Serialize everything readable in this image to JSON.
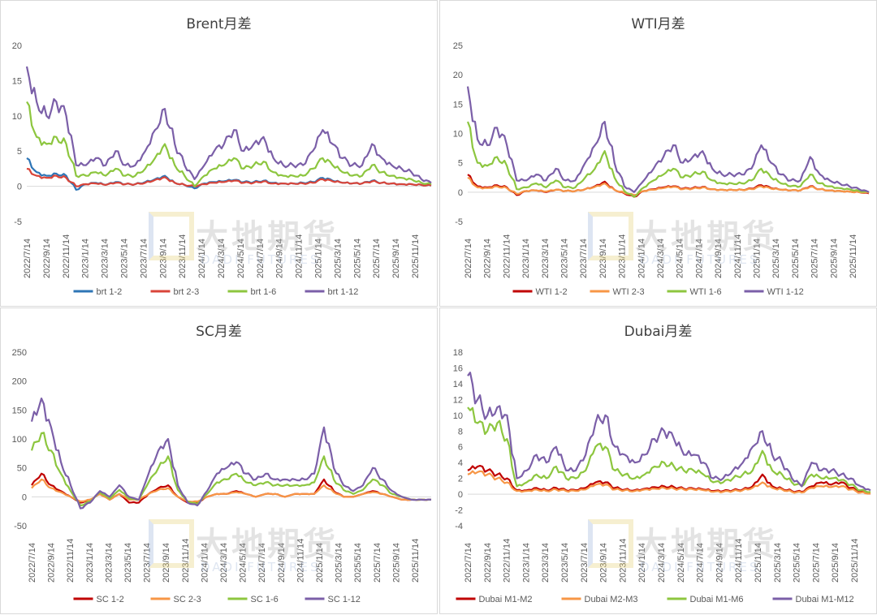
{
  "watermark": {
    "cn": "大地期货",
    "en": "DADI FUTURES"
  },
  "chart_data": [
    {
      "type": "line",
      "title": "Brent月差",
      "ylim": [
        -5,
        20
      ],
      "yticks": [
        -5,
        0,
        5,
        10,
        15,
        20
      ],
      "xticks": [
        "2022/7/14",
        "2022/9/14",
        "2022/11/14",
        "2023/1/14",
        "2023/3/14",
        "2023/5/14",
        "2023/7/14",
        "2023/9/14",
        "2023/11/14",
        "2024/1/14",
        "2024/3/14",
        "2024/5/14",
        "2024/7/14",
        "2024/9/14",
        "2024/11/14",
        "2025/1/14",
        "2025/3/14",
        "2025/5/14",
        "2025/7/14",
        "2025/9/14",
        "2025/11/14"
      ],
      "series": [
        {
          "name": "brt 1-2",
          "color": "#2e75b6",
          "values": [
            4,
            2,
            1.5,
            1.8,
            1.5,
            -0.5,
            0.3,
            0.5,
            0.2,
            0.6,
            0.3,
            0.3,
            0.6,
            1,
            1.5,
            0.5,
            0.2,
            -0.3,
            0.4,
            0.6,
            0.7,
            0.9,
            0.6,
            0.6,
            0.8,
            0.5,
            0.4,
            0.4,
            0.5,
            0.6,
            1.2,
            0.8,
            0.5,
            0.4,
            0.4,
            0.8,
            0.5,
            0.4,
            0.3,
            0.3,
            0.2,
            0.1
          ]
        },
        {
          "name": "brt 2-3",
          "color": "#d9453a",
          "values": [
            2.5,
            1.5,
            1.2,
            1.5,
            1.2,
            0,
            0.3,
            0.4,
            0.2,
            0.5,
            0.3,
            0.3,
            0.5,
            0.9,
            1.3,
            0.5,
            0.2,
            0,
            0.3,
            0.5,
            0.6,
            0.8,
            0.5,
            0.5,
            0.7,
            0.4,
            0.4,
            0.4,
            0.4,
            0.5,
            1,
            0.7,
            0.5,
            0.4,
            0.4,
            0.7,
            0.5,
            0.4,
            0.3,
            0.3,
            0.2,
            0.1
          ]
        },
        {
          "name": "brt 1-6",
          "color": "#8dc63f",
          "values": [
            12,
            7,
            6,
            7,
            6,
            1.5,
            1.5,
            2,
            1.5,
            2.5,
            1.5,
            1.5,
            2.5,
            4,
            6,
            3,
            1.5,
            0,
            1.5,
            2.5,
            3,
            4,
            2.5,
            3,
            3.5,
            2,
            1.5,
            1.5,
            1.5,
            2.5,
            4,
            3,
            2,
            1.5,
            1.5,
            3,
            2,
            1.5,
            1.2,
            1,
            0.5,
            0.3
          ]
        },
        {
          "name": "brt 1-12",
          "color": "#7b5fa8",
          "values": [
            17,
            12,
            10,
            12,
            10,
            3,
            3,
            4,
            3,
            5,
            3,
            3,
            5,
            8,
            11,
            6,
            3,
            1,
            3,
            5,
            6,
            8,
            5,
            6,
            7,
            4,
            3,
            3,
            3,
            5,
            8,
            6,
            4,
            3,
            3,
            6,
            4,
            3,
            2.5,
            2,
            1,
            0.5
          ]
        }
      ]
    },
    {
      "type": "line",
      "title": "WTI月差",
      "ylim": [
        -5,
        25
      ],
      "yticks": [
        -5,
        0,
        5,
        10,
        15,
        20,
        25
      ],
      "xticks": [
        "2022/7/14",
        "2022/9/14",
        "2022/11/14",
        "2023/1/14",
        "2023/3/14",
        "2023/5/14",
        "2023/7/14",
        "2023/9/14",
        "2023/11/14",
        "2024/1/14",
        "2024/3/14",
        "2024/5/14",
        "2024/7/14",
        "2024/9/14",
        "2024/11/14",
        "2025/1/14",
        "2025/3/14",
        "2025/5/14",
        "2025/7/14",
        "2025/9/14",
        "2025/11/14"
      ],
      "series": [
        {
          "name": "WTI 1-2",
          "color": "#c00000",
          "values": [
            3,
            1,
            0.8,
            1.2,
            0.8,
            -0.5,
            0.2,
            0.3,
            0,
            0.4,
            0.2,
            0.2,
            0.5,
            1,
            1.8,
            0.4,
            -0.2,
            -0.8,
            0.2,
            0.5,
            0.8,
            1,
            0.6,
            0.7,
            0.9,
            0.5,
            0.4,
            0.4,
            0.4,
            0.6,
            1.2,
            0.7,
            0.4,
            0.3,
            0.3,
            1,
            0.5,
            0.3,
            0.2,
            0.1,
            0,
            -0.2
          ]
        },
        {
          "name": "WTI 2-3",
          "color": "#f79646",
          "values": [
            2.5,
            0.8,
            0.7,
            1,
            0.7,
            -0.3,
            0.2,
            0.3,
            0.1,
            0.4,
            0.2,
            0.2,
            0.5,
            0.9,
            1.5,
            0.4,
            -0.1,
            -0.5,
            0.2,
            0.4,
            0.7,
            0.9,
            0.5,
            0.6,
            0.8,
            0.5,
            0.4,
            0.4,
            0.4,
            0.5,
            1,
            0.6,
            0.4,
            0.3,
            0.3,
            0.9,
            0.5,
            0.3,
            0.2,
            0.1,
            0,
            -0.1
          ]
        },
        {
          "name": "WTI 1-6",
          "color": "#8dc63f",
          "values": [
            12,
            5,
            4.5,
            6,
            4.5,
            0.5,
            0.8,
            1.5,
            0.8,
            2,
            0.8,
            0.8,
            2.5,
            4,
            7,
            2.5,
            0.2,
            -0.8,
            0.8,
            2,
            3,
            4,
            2.5,
            3,
            3.5,
            2,
            1.5,
            1.5,
            1.5,
            2,
            4,
            2.5,
            1.5,
            1,
            1,
            3,
            1.5,
            1,
            0.7,
            0.5,
            0.2,
            0
          ]
        },
        {
          "name": "WTI 1-12",
          "color": "#7b5fa8",
          "values": [
            18,
            9,
            8,
            11,
            8,
            2,
            2,
            3,
            2,
            4,
            2,
            2,
            5,
            8,
            12,
            5,
            1,
            0,
            2,
            4,
            6,
            8,
            5,
            6,
            7,
            4,
            3,
            3,
            3,
            4,
            8,
            5,
            3,
            2,
            2,
            6,
            3,
            2,
            1.5,
            1,
            0.5,
            0
          ]
        }
      ]
    },
    {
      "type": "line",
      "title": "SC月差",
      "ylim": [
        -50,
        250
      ],
      "yticks": [
        -50,
        0,
        50,
        100,
        150,
        200,
        250
      ],
      "xticks": [
        "2022/7/14",
        "2022/9/14",
        "2022/11/14",
        "2023/1/14",
        "2023/3/14",
        "2023/5/14",
        "2023/7/14",
        "2023/9/14",
        "2023/11/14",
        "2024/1/14",
        "2024/3/14",
        "2024/5/14",
        "2024/7/14",
        "2024/9/14",
        "2024/11/14",
        "2025/1/14",
        "2025/3/14",
        "2025/5/14",
        "2025/7/14",
        "2025/9/14",
        "2025/11/14"
      ],
      "series": [
        {
          "name": "SC 1-2",
          "color": "#c00000",
          "values": [
            20,
            40,
            20,
            10,
            0,
            -10,
            -5,
            5,
            -5,
            5,
            -10,
            -10,
            5,
            15,
            20,
            0,
            -10,
            -10,
            0,
            5,
            5,
            10,
            5,
            0,
            5,
            5,
            0,
            5,
            5,
            5,
            30,
            10,
            0,
            0,
            5,
            10,
            5,
            0,
            -5,
            -5,
            -5,
            -5
          ]
        },
        {
          "name": "SC 2-3",
          "color": "#f79646",
          "values": [
            15,
            30,
            15,
            8,
            0,
            -8,
            -5,
            5,
            -5,
            5,
            -5,
            -5,
            5,
            12,
            15,
            0,
            -8,
            -8,
            0,
            5,
            5,
            8,
            5,
            0,
            5,
            5,
            0,
            5,
            5,
            5,
            20,
            8,
            0,
            0,
            5,
            8,
            5,
            0,
            -5,
            -5,
            -5,
            -5
          ]
        },
        {
          "name": "SC 1-6",
          "color": "#8dc63f",
          "values": [
            80,
            110,
            80,
            40,
            10,
            -15,
            -8,
            8,
            -3,
            12,
            -3,
            -5,
            25,
            50,
            70,
            12,
            -8,
            -12,
            5,
            25,
            30,
            40,
            25,
            20,
            25,
            20,
            20,
            20,
            20,
            25,
            70,
            30,
            12,
            5,
            12,
            30,
            20,
            5,
            0,
            -5,
            -5,
            -5
          ]
        },
        {
          "name": "SC 1-12",
          "color": "#7b5fa8",
          "values": [
            130,
            170,
            120,
            60,
            20,
            -20,
            -10,
            10,
            0,
            20,
            0,
            -5,
            40,
            80,
            100,
            20,
            -10,
            -15,
            10,
            40,
            50,
            60,
            40,
            30,
            40,
            30,
            30,
            30,
            30,
            40,
            120,
            50,
            20,
            10,
            20,
            50,
            30,
            10,
            0,
            -5,
            -5,
            -5
          ]
        }
      ]
    },
    {
      "type": "line",
      "title": "Dubai月差",
      "ylim": [
        -4,
        18
      ],
      "yticks": [
        -4,
        -2,
        0,
        2,
        4,
        6,
        8,
        10,
        12,
        14,
        16,
        18
      ],
      "xticks": [
        "2022/7/14",
        "2022/9/14",
        "2022/11/14",
        "2023/1/14",
        "2023/3/14",
        "2023/5/14",
        "2023/7/14",
        "2023/9/14",
        "2023/11/14",
        "2024/1/14",
        "2024/3/14",
        "2024/5/14",
        "2024/7/14",
        "2024/9/14",
        "2024/11/14",
        "2025/1/14",
        "2025/3/14",
        "2025/5/14",
        "2025/7/14",
        "2025/9/14",
        "2025/11/14"
      ],
      "series": [
        {
          "name": "Dubai M1-M2",
          "color": "#c00000",
          "values": [
            3,
            3.5,
            3,
            2.5,
            2,
            0.5,
            0.5,
            0.8,
            0.5,
            0.8,
            0.5,
            0.5,
            0.8,
            1.5,
            1.5,
            0.8,
            0.6,
            0.5,
            0.7,
            0.9,
            1,
            0.9,
            0.7,
            0.7,
            0.6,
            0.4,
            0.4,
            0.5,
            0.6,
            1,
            2.5,
            1,
            0.7,
            0.4,
            0.3,
            1,
            1.5,
            1.2,
            1.5,
            0.8,
            0.3,
            0.1
          ]
        },
        {
          "name": "Dubai M2-M3",
          "color": "#f79646",
          "values": [
            2.5,
            2.8,
            2.5,
            2,
            1.5,
            0.4,
            0.4,
            0.6,
            0.4,
            0.6,
            0.4,
            0.4,
            0.6,
            1.2,
            1.2,
            0.6,
            0.5,
            0.4,
            0.6,
            0.7,
            0.8,
            0.7,
            0.6,
            0.6,
            0.5,
            0.3,
            0.3,
            0.4,
            0.5,
            0.8,
            1.5,
            0.8,
            0.6,
            0.3,
            0.2,
            0.8,
            1,
            0.9,
            1,
            0.6,
            0.2,
            0.1
          ]
        },
        {
          "name": "Dubai M1-M6",
          "color": "#8dc63f",
          "values": [
            11,
            9,
            8,
            9,
            7,
            1,
            1.5,
            2.5,
            2,
            3.5,
            2,
            2,
            3,
            6,
            6,
            3,
            2.5,
            2,
            2.5,
            3.5,
            4,
            3.5,
            3,
            3,
            2.5,
            1.5,
            1.5,
            2,
            2.5,
            3,
            5.5,
            3,
            2.5,
            1.5,
            1,
            2.5,
            2,
            2,
            1.8,
            1.2,
            0.5,
            0.3
          ]
        },
        {
          "name": "Dubai M1-M12",
          "color": "#7b5fa8",
          "values": [
            15,
            12,
            10,
            11,
            10,
            2,
            3,
            5,
            4,
            6,
            3,
            3,
            5,
            9,
            10,
            6,
            5,
            4,
            5,
            7,
            8,
            7,
            5,
            5,
            4,
            2,
            2,
            3,
            4,
            6,
            8,
            5,
            4,
            2,
            1,
            4,
            3,
            3,
            2.5,
            2,
            1,
            0.5
          ]
        }
      ]
    }
  ]
}
